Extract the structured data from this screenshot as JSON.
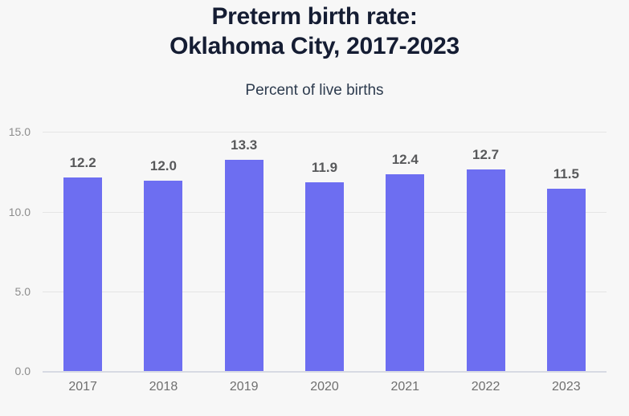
{
  "header": {
    "title_line1": "Preterm birth rate:",
    "title_line2": "Oklahoma City, 2017-2023",
    "subtitle": "Percent of live births"
  },
  "chart_data": {
    "type": "bar",
    "title": "Preterm birth rate: Oklahoma City, 2017-2023",
    "subtitle": "Percent of live births",
    "categories": [
      "2017",
      "2018",
      "2019",
      "2020",
      "2021",
      "2022",
      "2023"
    ],
    "values": [
      12.2,
      12.0,
      13.3,
      11.9,
      12.4,
      12.7,
      11.5
    ],
    "value_labels": [
      "12.2",
      "12.0",
      "13.3",
      "11.9",
      "12.4",
      "12.7",
      "11.5"
    ],
    "xlabel": "",
    "ylabel": "Percent of live births",
    "ylim": [
      0,
      15
    ],
    "yticks": [
      0,
      5,
      10,
      15
    ],
    "ytick_labels": [
      "0.0",
      "5.0",
      "10.0",
      "15.0"
    ],
    "grid": true,
    "legend": "none",
    "bar_color": "#6d6ef1"
  },
  "colors": {
    "background": "#f7f7f7",
    "title": "#151d33",
    "subtitle": "#2d3b4e",
    "bar": "#6d6ef1",
    "value_label": "#58595b",
    "ytick": "#8c8c8c",
    "xtick": "#6f6f6f",
    "gridline": "#e5e5e5",
    "baseline": "#d7dae3"
  }
}
